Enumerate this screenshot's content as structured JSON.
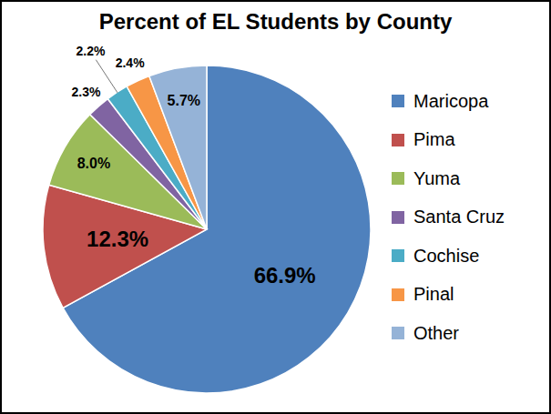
{
  "chart_data": {
    "type": "pie",
    "title": "Percent of EL Students by County",
    "categories": [
      "Maricopa",
      "Pima",
      "Yuma",
      "Santa Cruz",
      "Cochise",
      "Pinal",
      "Other"
    ],
    "values": [
      66.9,
      12.3,
      8.0,
      2.3,
      2.2,
      2.4,
      5.7
    ],
    "value_labels": [
      "66.9%",
      "12.3%",
      "8.0%",
      "2.3%",
      "2.2%",
      "2.4%",
      "5.7%"
    ],
    "colors": [
      "#4F81BD",
      "#C0504D",
      "#9BBB59",
      "#8064A2",
      "#4BACC6",
      "#F79646",
      "#95B3D7"
    ],
    "data_labels": true,
    "legend": "right"
  }
}
